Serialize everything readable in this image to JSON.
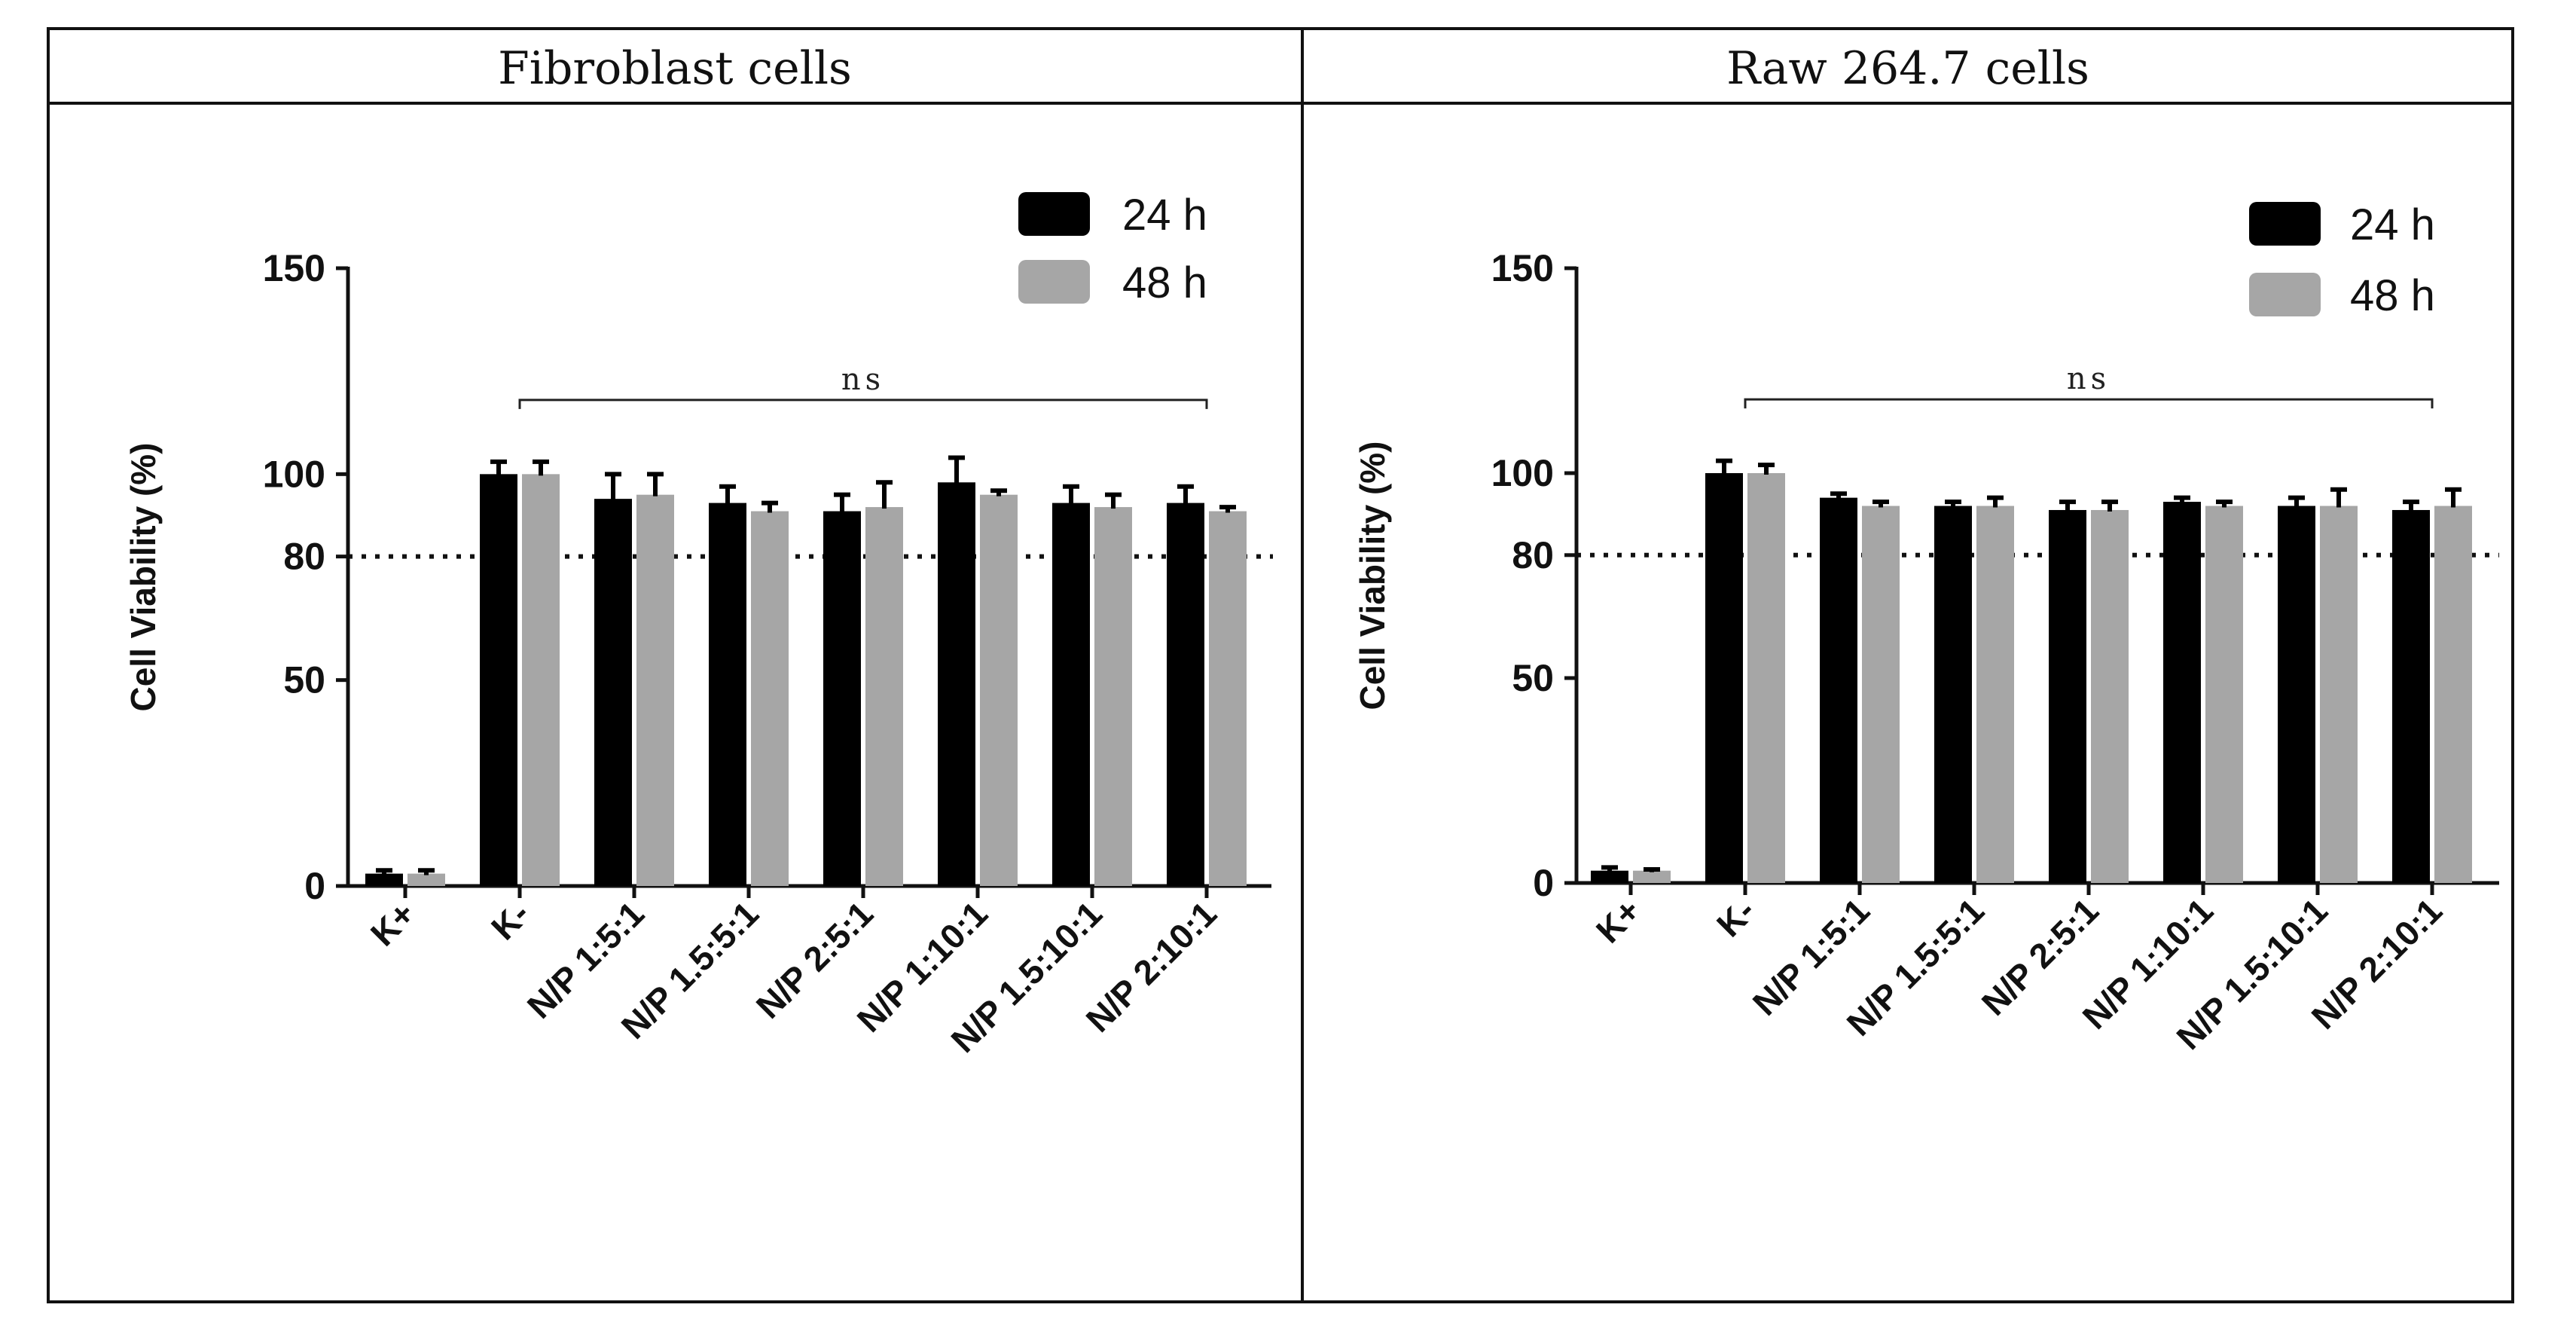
{
  "chart_data": [
    {
      "type": "bar",
      "title": "Fibroblast cells",
      "xlabel": "",
      "ylabel": "Cell Viability (%)",
      "ylim": [
        0,
        150
      ],
      "yticks": [
        "0",
        "50",
        "80",
        "100",
        "150"
      ],
      "categories": [
        "K+",
        "K-",
        "N/P 1:5:1",
        "N/P 1.5:5:1",
        "N/P 2:5:1",
        "N/P 1:10:1",
        "N/P 1.5:10:1",
        "N/P 2:10:1"
      ],
      "series": [
        {
          "name": "24 h",
          "color": "#000000",
          "values": [
            3,
            100,
            94,
            93,
            91,
            98,
            93,
            93
          ],
          "errors": [
            0.8,
            3,
            6,
            4,
            4,
            6,
            4,
            4
          ]
        },
        {
          "name": "48 h",
          "color": "#a6a6a6",
          "values": [
            3,
            100,
            95,
            91,
            92,
            95,
            92,
            91
          ],
          "errors": [
            0.8,
            3,
            5,
            2,
            6,
            1,
            3,
            1
          ]
        }
      ],
      "threshold": {
        "value": 80,
        "style": "dotted"
      },
      "significance": {
        "label": "ns",
        "from": "K-",
        "to": "N/P 2:10:1"
      },
      "legend_position": "top-right"
    },
    {
      "type": "bar",
      "title": "Raw 264.7 cells",
      "xlabel": "",
      "ylabel": "Cell Viability (%)",
      "ylim": [
        0,
        150
      ],
      "yticks": [
        "0",
        "50",
        "80",
        "100",
        "150"
      ],
      "categories": [
        "K+",
        "K-",
        "N/P 1:5:1",
        "N/P 1.5:5:1",
        "N/P 2:5:1",
        "N/P 1:10:1",
        "N/P 1.5:10:1",
        "N/P 2:10:1"
      ],
      "series": [
        {
          "name": "24 h",
          "color": "#000000",
          "values": [
            3,
            100,
            94,
            92,
            91,
            93,
            92,
            91
          ],
          "errors": [
            0.8,
            3,
            1,
            1,
            2,
            1,
            2,
            2
          ]
        },
        {
          "name": "48 h",
          "color": "#a6a6a6",
          "values": [
            3,
            100,
            92,
            92,
            91,
            92,
            92,
            92
          ],
          "errors": [
            0.3,
            2,
            1,
            2,
            2,
            1,
            4,
            4
          ]
        }
      ],
      "threshold": {
        "value": 80,
        "style": "dotted"
      },
      "significance": {
        "label": "ns",
        "from": "K-",
        "to": "N/P 2:10:1"
      },
      "legend_position": "top-right"
    }
  ]
}
